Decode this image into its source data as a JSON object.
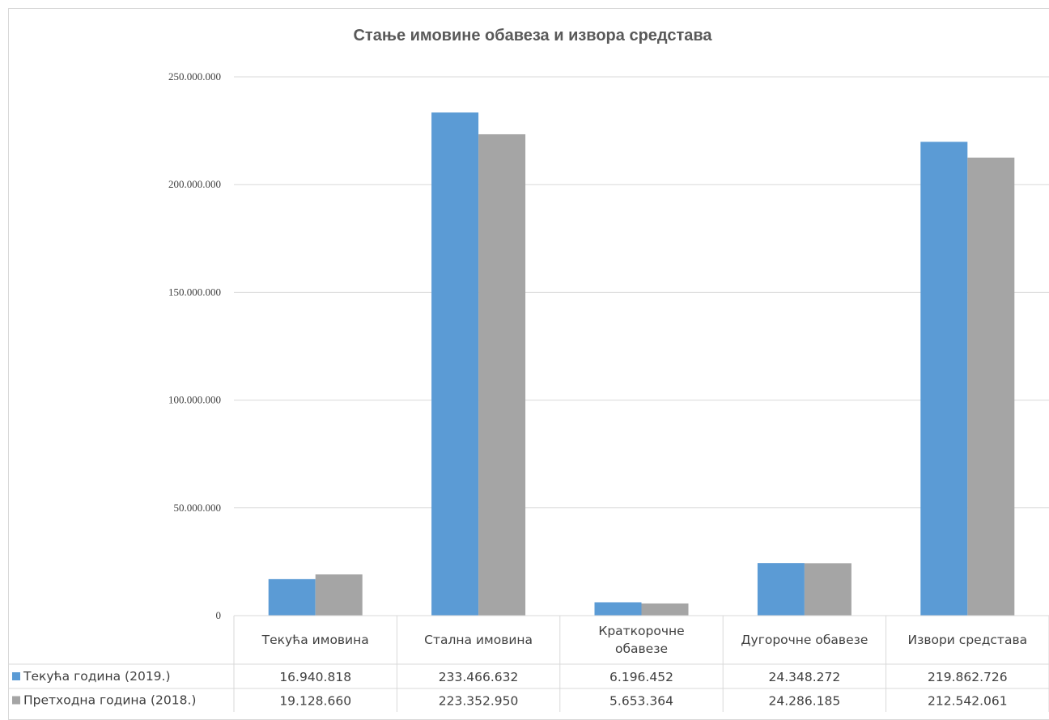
{
  "chart_data": {
    "type": "bar",
    "title": "Стање имовине обавеза и извора средстава",
    "xlabel": "",
    "ylabel": "",
    "ylim": [
      0,
      250000000
    ],
    "yticks": [
      0,
      50000000,
      100000000,
      150000000,
      200000000,
      250000000
    ],
    "ytick_labels": [
      "0",
      "50.000.000",
      "100.000.000",
      "150.000.000",
      "200.000.000",
      "250.000.000"
    ],
    "categories": [
      "Текућа имовина",
      "Стална имовина",
      "Краткорочне обавезе",
      "Дугорочне обавезе",
      "Извори средстава"
    ],
    "series": [
      {
        "name": "Текућа година (2019.)",
        "color": "#5b9bd5",
        "values": [
          16940818,
          233466632,
          6196452,
          24348272,
          219862726
        ],
        "value_labels": [
          "16.940.818",
          "233.466.632",
          "6.196.452",
          "24.348.272",
          "219.862.726"
        ]
      },
      {
        "name": "Претходна година (2018.)",
        "color": "#a5a5a5",
        "values": [
          19128660,
          223352950,
          5653364,
          24286185,
          212542061
        ],
        "value_labels": [
          "19.128.660",
          "223.352.950",
          "5.653.364",
          "24.286.185",
          "212.542.061"
        ]
      }
    ],
    "grid": true,
    "legend": "data-table",
    "data_table": true
  }
}
